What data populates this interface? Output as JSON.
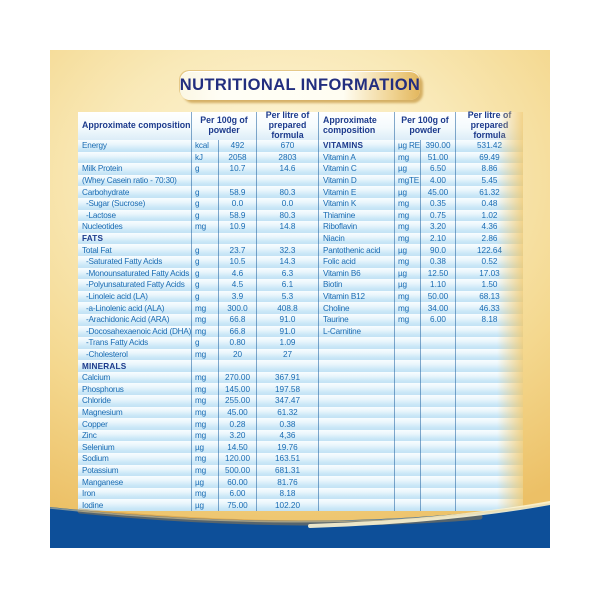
{
  "page": {
    "title": "NUTRITIONAL INFORMATION"
  },
  "columns": {
    "composition": "Approximate composition",
    "per_100g": "Per 100g of powder",
    "per_litre": "Per litre of prepared formula"
  },
  "left_rows": [
    {
      "label": "Energy",
      "unit": "kcal",
      "per_100g": "492",
      "per_litre": "670",
      "cls": ""
    },
    {
      "label": "",
      "unit": "kJ",
      "per_100g": "2058",
      "per_litre": "2803",
      "cls": ""
    },
    {
      "label": "Milk Protein",
      "unit": "g",
      "per_100g": "10.7",
      "per_litre": "14.6",
      "cls": ""
    },
    {
      "label": "(Whey Casein ratio - 70:30)",
      "unit": "",
      "per_100g": "",
      "per_litre": "",
      "cls": ""
    },
    {
      "label": "Carbohydrate",
      "unit": "g",
      "per_100g": "58.9",
      "per_litre": "80.3",
      "cls": ""
    },
    {
      "label": "-Sugar (Sucrose)",
      "unit": "g",
      "per_100g": "0.0",
      "per_litre": "0.0",
      "cls": "ind"
    },
    {
      "label": "-Lactose",
      "unit": "g",
      "per_100g": "58.9",
      "per_litre": "80.3",
      "cls": "ind"
    },
    {
      "label": "Nucleotides",
      "unit": "mg",
      "per_100g": "10.9",
      "per_litre": "14.8",
      "cls": ""
    },
    {
      "label": "FATS",
      "unit": "",
      "per_100g": "",
      "per_litre": "",
      "cls": "sec"
    },
    {
      "label": "Total Fat",
      "unit": "g",
      "per_100g": "23.7",
      "per_litre": "32.3",
      "cls": ""
    },
    {
      "label": "-Saturated Fatty Acids",
      "unit": "g",
      "per_100g": "10.5",
      "per_litre": "14.3",
      "cls": "ind"
    },
    {
      "label": "-Monounsaturated Fatty Acids",
      "unit": "g",
      "per_100g": "4.6",
      "per_litre": "6.3",
      "cls": "ind"
    },
    {
      "label": "-Polyunsaturated Fatty Acids",
      "unit": "g",
      "per_100g": "4.5",
      "per_litre": "6.1",
      "cls": "ind"
    },
    {
      "label": "-Linoleic acid (LA)",
      "unit": "g",
      "per_100g": "3.9",
      "per_litre": "5.3",
      "cls": "ind"
    },
    {
      "label": "-a-Linolenic acid (ALA)",
      "unit": "mg",
      "per_100g": "300.0",
      "per_litre": "408.8",
      "cls": "ind"
    },
    {
      "label": "-Arachidonic Acid (ARA)",
      "unit": "mg",
      "per_100g": "66.8",
      "per_litre": "91.0",
      "cls": "ind"
    },
    {
      "label": "-Docosahexaenoic Acid (DHA)",
      "unit": "mg",
      "per_100g": "66.8",
      "per_litre": "91.0",
      "cls": "ind"
    },
    {
      "label": "-Trans Fatty Acids",
      "unit": "g",
      "per_100g": "0.80",
      "per_litre": "1.09",
      "cls": "ind"
    },
    {
      "label": "-Cholesterol",
      "unit": "mg",
      "per_100g": "20",
      "per_litre": "27",
      "cls": "ind"
    },
    {
      "label": "MINERALS",
      "unit": "",
      "per_100g": "",
      "per_litre": "",
      "cls": "sec"
    },
    {
      "label": "Calcium",
      "unit": "mg",
      "per_100g": "270.00",
      "per_litre": "367.91",
      "cls": ""
    },
    {
      "label": "Phosphorus",
      "unit": "mg",
      "per_100g": "145.00",
      "per_litre": "197.58",
      "cls": ""
    },
    {
      "label": "Chloride",
      "unit": "mg",
      "per_100g": "255.00",
      "per_litre": "347.47",
      "cls": ""
    },
    {
      "label": "Magnesium",
      "unit": "mg",
      "per_100g": "45.00",
      "per_litre": "61.32",
      "cls": ""
    },
    {
      "label": "Copper",
      "unit": "mg",
      "per_100g": "0.28",
      "per_litre": "0.38",
      "cls": ""
    },
    {
      "label": "Zinc",
      "unit": "mg",
      "per_100g": "3.20",
      "per_litre": "4,36",
      "cls": ""
    },
    {
      "label": "Selenium",
      "unit": "µg",
      "per_100g": "14.50",
      "per_litre": "19.76",
      "cls": ""
    },
    {
      "label": "Sodium",
      "unit": "mg",
      "per_100g": "120.00",
      "per_litre": "163.51",
      "cls": ""
    },
    {
      "label": "Potassium",
      "unit": "mg",
      "per_100g": "500.00",
      "per_litre": "681.31",
      "cls": ""
    },
    {
      "label": "Manganese",
      "unit": "µg",
      "per_100g": "60.00",
      "per_litre": "81.76",
      "cls": ""
    },
    {
      "label": "Iron",
      "unit": "mg",
      "per_100g": "6.00",
      "per_litre": "8.18",
      "cls": ""
    },
    {
      "label": "Iodine",
      "unit": "µg",
      "per_100g": "75.00",
      "per_litre": "102.20",
      "cls": ""
    }
  ],
  "right_rows": [
    {
      "label": "VITAMINS",
      "unit": "µg RE",
      "per_100g": "390.00",
      "per_litre": "531.42",
      "cls": "sec"
    },
    {
      "label": "Vitamin A",
      "unit": "mg",
      "per_100g": "51.00",
      "per_litre": "69.49",
      "cls": ""
    },
    {
      "label": "Vitamin C",
      "unit": "µg",
      "per_100g": "6.50",
      "per_litre": "8.86",
      "cls": ""
    },
    {
      "label": "Vitamin D",
      "unit": "mgTE",
      "per_100g": "4.00",
      "per_litre": "5.45",
      "cls": ""
    },
    {
      "label": "Vitamin E",
      "unit": "µg",
      "per_100g": "45.00",
      "per_litre": "61.32",
      "cls": ""
    },
    {
      "label": "Vitamin K",
      "unit": "mg",
      "per_100g": "0.35",
      "per_litre": "0.48",
      "cls": ""
    },
    {
      "label": "Thiamine",
      "unit": "mg",
      "per_100g": "0.75",
      "per_litre": "1.02",
      "cls": ""
    },
    {
      "label": "Riboflavin",
      "unit": "mg",
      "per_100g": "3.20",
      "per_litre": "4.36",
      "cls": ""
    },
    {
      "label": "Niacin",
      "unit": "mg",
      "per_100g": "2.10",
      "per_litre": "2.86",
      "cls": ""
    },
    {
      "label": "Pantothenic acid",
      "unit": "µg",
      "per_100g": "90.0",
      "per_litre": "122.64",
      "cls": ""
    },
    {
      "label": "Folic acid",
      "unit": "mg",
      "per_100g": "0.38",
      "per_litre": "0.52",
      "cls": ""
    },
    {
      "label": "Vitamin B6",
      "unit": "µg",
      "per_100g": "12.50",
      "per_litre": "17.03",
      "cls": ""
    },
    {
      "label": "Biotin",
      "unit": "µg",
      "per_100g": "1.10",
      "per_litre": "1.50",
      "cls": ""
    },
    {
      "label": "Vitamin B12",
      "unit": "mg",
      "per_100g": "50.00",
      "per_litre": "68.13",
      "cls": ""
    },
    {
      "label": "Choline",
      "unit": "mg",
      "per_100g": "34.00",
      "per_litre": "46.33",
      "cls": ""
    },
    {
      "label": "Taurine",
      "unit": "mg",
      "per_100g": "6.00",
      "per_litre": "8.18",
      "cls": ""
    },
    {
      "label": "L-Carnitine",
      "unit": "",
      "per_100g": "",
      "per_litre": "",
      "cls": ""
    }
  ],
  "colors": {
    "gold_edge": "#ecc066",
    "gold_center": "#fdf6dc",
    "title_navy": "#222e7f",
    "header_navy": "#1c3a8c",
    "row_text_blue": "#1a6cb3",
    "stripe_blue": "#c2e2f5",
    "band_blue": "#0d4f99"
  }
}
